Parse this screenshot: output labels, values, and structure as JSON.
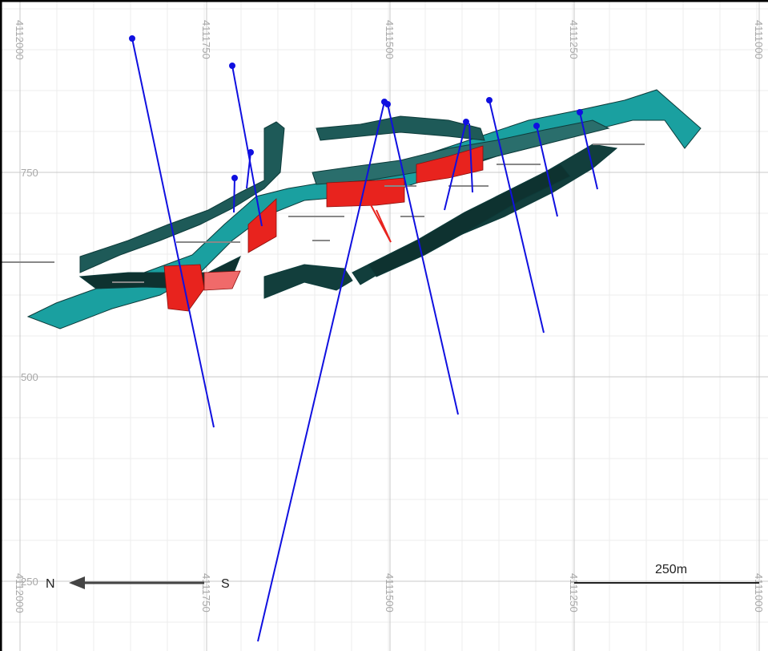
{
  "top_labels": [
    "4112000",
    "4111750",
    "4111500",
    "4111250",
    "4111000"
  ],
  "bottom_labels": [
    "4112000",
    "4111750",
    "4111500",
    "4111250",
    "4111000"
  ],
  "elevation_labels": [
    "750",
    "500",
    "250"
  ],
  "compass": {
    "north": "N",
    "south": "S"
  },
  "scale_bar": "250m"
}
